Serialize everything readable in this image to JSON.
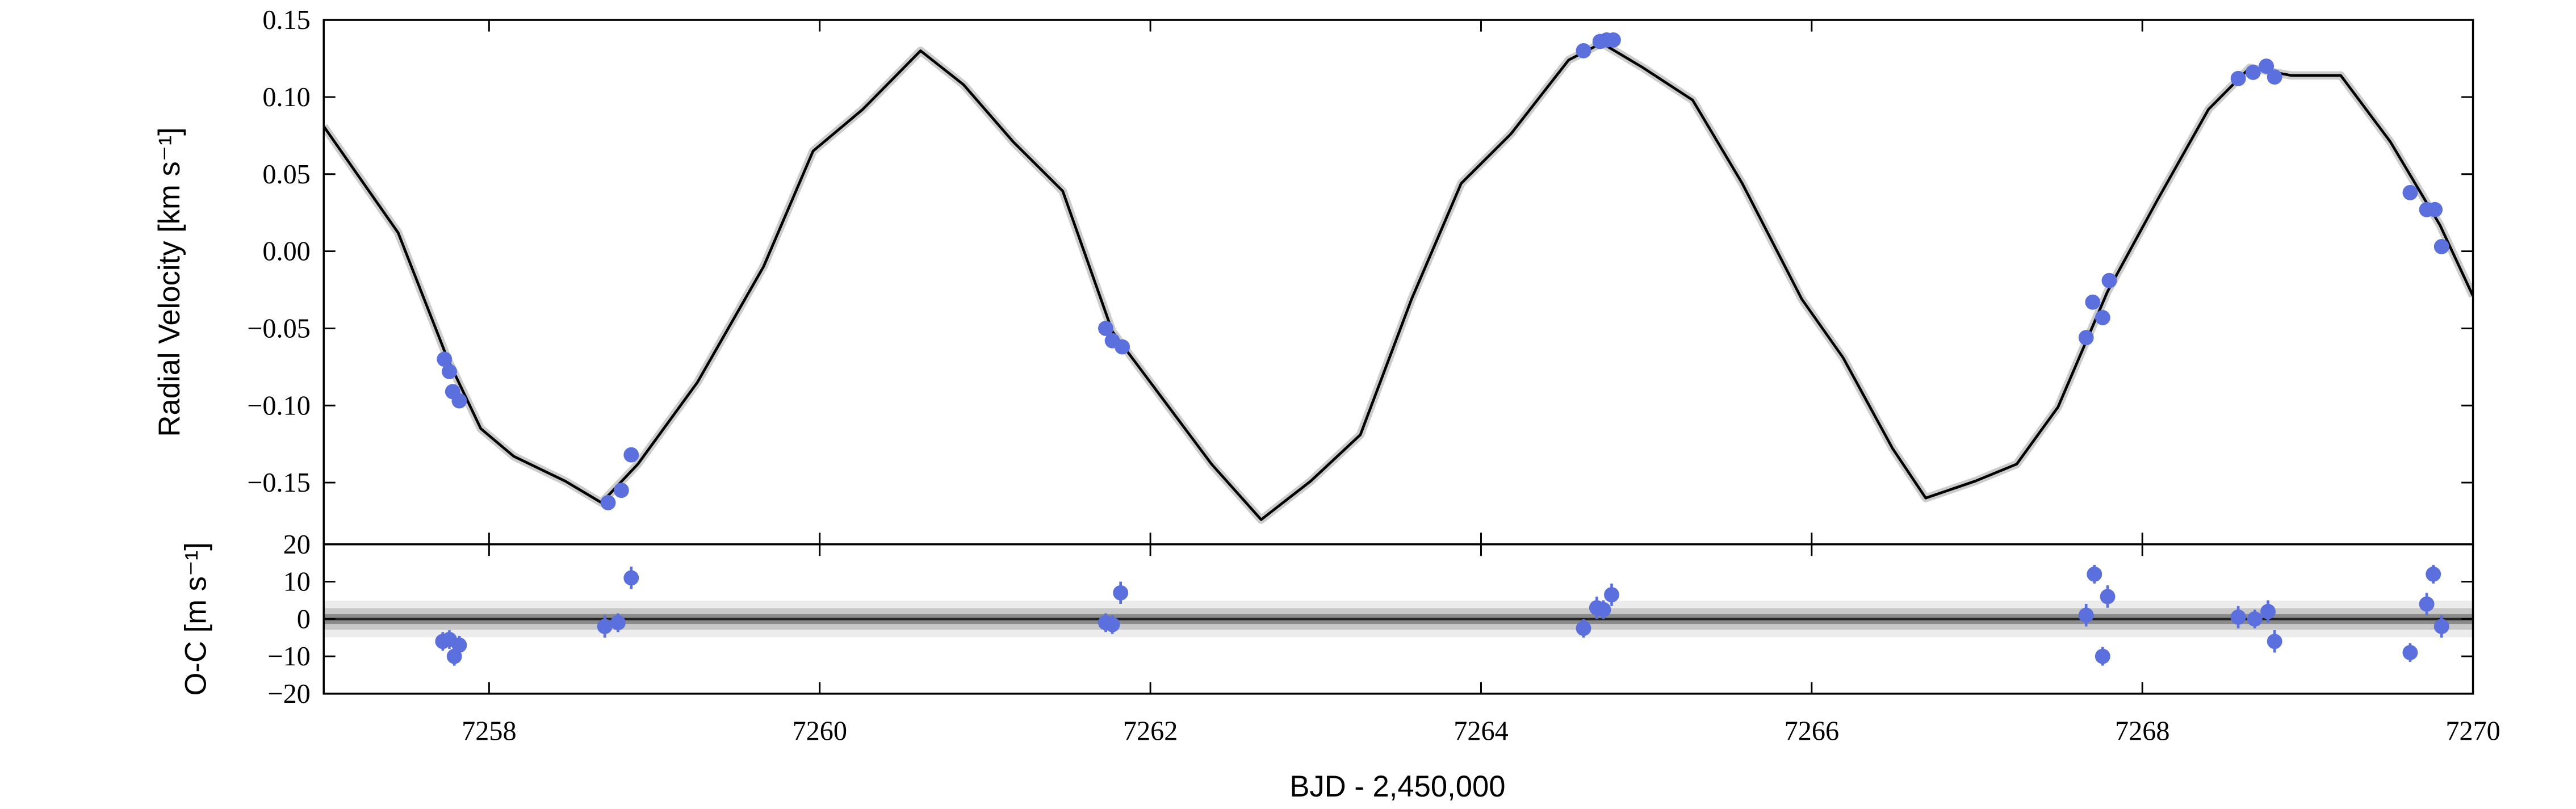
{
  "chart_data": [
    {
      "type": "line",
      "ylabel": "Radial Velocity [km s⁻¹]",
      "xlim": [
        7257,
        7270
      ],
      "ylim": [
        -0.19,
        0.15
      ],
      "yticks": [
        {
          "value": -0.15,
          "label": "−0.15"
        },
        {
          "value": -0.1,
          "label": "−0.10"
        },
        {
          "value": -0.05,
          "label": "−0.05"
        },
        {
          "value": 0,
          "label": "0.00"
        },
        0.05,
        {
          "value": 0.1,
          "label": "0.10"
        },
        0.15
      ],
      "series": [
        {
          "type": "line",
          "color": "#000000",
          "x": [
            7257,
            7257.45,
            7257.75,
            7257.95,
            7258.15,
            7258.46,
            7258.68,
            7258.9,
            7259.26,
            7259.66,
            7259.96,
            7260.26,
            7260.61,
            7260.87,
            7261.17,
            7261.47,
            7261.77,
            7262.07,
            7262.37,
            7262.67,
            7262.97,
            7263.27,
            7263.58,
            7263.88,
            7264.18,
            7264.53,
            7264.73,
            7264.98,
            7265.28,
            7265.58,
            7265.94,
            7266.19,
            7266.49,
            7266.69,
            7266.99,
            7267.24,
            7267.49,
            7267.79,
            7268.09,
            7268.4,
            7268.65,
            7268.9,
            7269.2,
            7269.5,
            7269.8,
            7270
          ],
          "values": [
            0.081,
            0.012,
            -0.07,
            -0.115,
            -0.133,
            -0.149,
            -0.163,
            -0.138,
            -0.085,
            -0.01,
            0.065,
            0.092,
            0.13,
            0.108,
            0.071,
            0.039,
            -0.052,
            -0.095,
            -0.138,
            -0.174,
            -0.149,
            -0.119,
            -0.031,
            0.044,
            0.076,
            0.124,
            0.135,
            0.119,
            0.098,
            0.044,
            -0.031,
            -0.069,
            -0.128,
            -0.16,
            -0.149,
            -0.138,
            -0.101,
            -0.026,
            0.033,
            0.092,
            0.119,
            0.114,
            0.114,
            0.071,
            0.017,
            -0.029
          ]
        },
        {
          "type": "scatter",
          "color": "#5b70dd",
          "x": [
            7257.73,
            7257.76,
            7257.78,
            7257.82,
            7258.72,
            7258.8,
            7258.86,
            7261.73,
            7261.77,
            7261.83,
            7264.62,
            7264.72,
            7264.76,
            7264.8,
            7267.66,
            7267.7,
            7267.76,
            7267.8,
            7268.58,
            7268.67,
            7268.75,
            7268.8,
            7269.62,
            7269.72,
            7269.77,
            7269.81
          ],
          "values": [
            -0.07,
            -0.078,
            -0.091,
            -0.097,
            -0.163,
            -0.155,
            -0.132,
            -0.05,
            -0.058,
            -0.062,
            0.13,
            0.136,
            0.137,
            0.137,
            -0.056,
            -0.033,
            -0.043,
            -0.019,
            0.112,
            0.116,
            0.12,
            0.113,
            0.038,
            0.027,
            0.027,
            0.003
          ]
        }
      ]
    },
    {
      "type": "scatter",
      "ylabel": "O-C [m s⁻¹]",
      "xlabel": "BJD - 2,450,000",
      "xlim": [
        7257,
        7270
      ],
      "xticks": [
        7258,
        7260,
        7262,
        7264,
        7266,
        7268,
        7270
      ],
      "ylim": [
        -20,
        20
      ],
      "yticks": [
        {
          "value": -20,
          "label": "−20"
        },
        {
          "value": -10,
          "label": "−10"
        },
        0,
        10,
        20
      ],
      "series": [
        {
          "type": "scatter",
          "color": "#5b70dd",
          "x": [
            7257.72,
            7257.76,
            7257.79,
            7257.82,
            7258.7,
            7258.78,
            7258.86,
            7261.73,
            7261.77,
            7261.82,
            7264.62,
            7264.7,
            7264.74,
            7264.79,
            7267.66,
            7267.71,
            7267.76,
            7267.79,
            7268.58,
            7268.68,
            7268.76,
            7268.8,
            7269.62,
            7269.72,
            7269.76,
            7269.81
          ],
          "values": [
            -6,
            -5.5,
            -10,
            -7,
            -2,
            -1,
            11,
            -1,
            -1.5,
            7,
            -2.5,
            3,
            2.5,
            6.5,
            1,
            12,
            -10,
            6,
            0.5,
            0,
            2,
            -6,
            -9,
            4,
            12,
            -2
          ],
          "errors": [
            2.5,
            2.5,
            2.5,
            2.5,
            3,
            2.5,
            3,
            2.5,
            2.5,
            3,
            2.5,
            3,
            2.5,
            3,
            3,
            2.5,
            2.5,
            3,
            3,
            2.5,
            3,
            3,
            2.5,
            3,
            2.5,
            3
          ]
        }
      ]
    }
  ]
}
